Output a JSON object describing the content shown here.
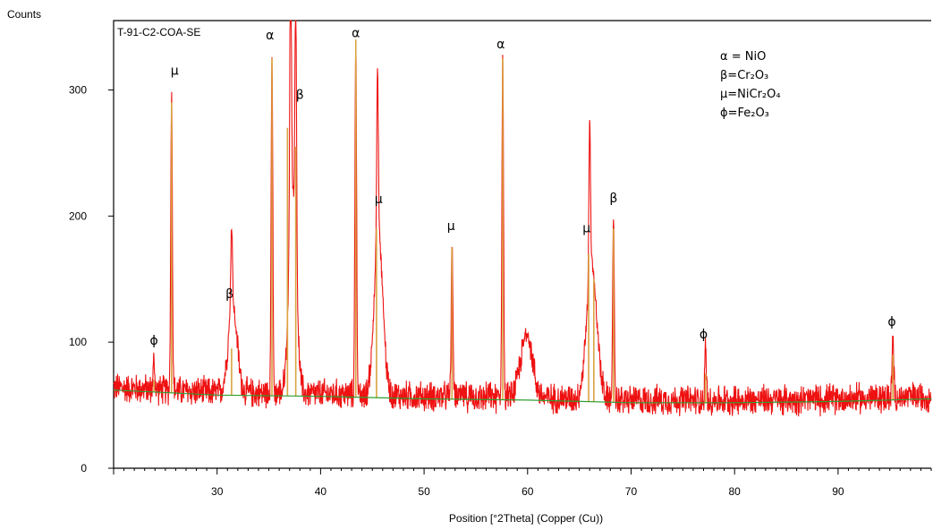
{
  "chart_data": {
    "type": "line",
    "sample_name": "T-91-C2-COA-SE",
    "ylabel": "Counts",
    "xlabel": "Position [°2Theta] (Copper (Cu))",
    "xlim": [
      20,
      99
    ],
    "ylim": [
      0,
      355
    ],
    "x_ticks": [
      "30",
      "40",
      "50",
      "60",
      "70",
      "80",
      "90"
    ],
    "x_tick_values": [
      30,
      40,
      50,
      60,
      70,
      80,
      90
    ],
    "y_ticks": [
      "0",
      "100",
      "200",
      "300"
    ],
    "y_tick_values": [
      0,
      100,
      200,
      300
    ],
    "colors": {
      "observed": "#ee1111",
      "reference": "#d9a441",
      "background": "#2f9e2f",
      "frame": "#000000"
    },
    "background_line": {
      "x": [
        20,
        30,
        40,
        50,
        60,
        70,
        80,
        90,
        99
      ],
      "y": [
        62,
        58,
        57,
        55,
        54,
        52,
        52,
        53,
        55
      ]
    },
    "noise_amplitude": 10,
    "humps": [
      {
        "center": 31.5,
        "height": 70,
        "width": 0.6
      },
      {
        "center": 37.3,
        "height": 160,
        "width": 0.5
      },
      {
        "center": 45.6,
        "height": 125,
        "width": 0.6
      },
      {
        "center": 59.9,
        "height": 50,
        "width": 0.8
      },
      {
        "center": 66.2,
        "height": 105,
        "width": 0.7
      }
    ],
    "peaks": [
      {
        "x": 23.9,
        "y": 85,
        "phase": "ϕ"
      },
      {
        "x": 25.6,
        "y": 298,
        "phase": "μ"
      },
      {
        "x": 31.4,
        "y": 127,
        "phase": "β"
      },
      {
        "x": 35.3,
        "y": 331,
        "phase": "α"
      },
      {
        "x": 37.1,
        "y": 286,
        "phase": "β"
      },
      {
        "x": 37.6,
        "y": 264,
        "phase": ""
      },
      {
        "x": 43.4,
        "y": 341,
        "phase": "α"
      },
      {
        "x": 45.5,
        "y": 196,
        "phase": "μ"
      },
      {
        "x": 52.7,
        "y": 178,
        "phase": "μ"
      },
      {
        "x": 57.6,
        "y": 327,
        "phase": "α"
      },
      {
        "x": 66.0,
        "y": 176,
        "phase": "μ"
      },
      {
        "x": 68.3,
        "y": 197,
        "phase": "β"
      },
      {
        "x": 77.2,
        "y": 95,
        "phase": "ϕ"
      },
      {
        "x": 95.3,
        "y": 105,
        "phase": "ϕ"
      }
    ],
    "reference_lines": [
      {
        "x": 23.9,
        "y": 70
      },
      {
        "x": 25.6,
        "y": 290
      },
      {
        "x": 31.4,
        "y": 95
      },
      {
        "x": 35.3,
        "y": 325
      },
      {
        "x": 36.8,
        "y": 270
      },
      {
        "x": 37.6,
        "y": 255
      },
      {
        "x": 43.4,
        "y": 340
      },
      {
        "x": 45.4,
        "y": 190
      },
      {
        "x": 52.7,
        "y": 175
      },
      {
        "x": 57.6,
        "y": 325
      },
      {
        "x": 65.9,
        "y": 170
      },
      {
        "x": 66.4,
        "y": 150
      },
      {
        "x": 68.3,
        "y": 190
      },
      {
        "x": 77.2,
        "y": 75
      },
      {
        "x": 95.3,
        "y": 90
      }
    ],
    "annotations": [
      {
        "label": "ϕ",
        "x": 23.9,
        "y": 98
      },
      {
        "label": "μ",
        "x": 25.9,
        "y": 312
      },
      {
        "label": "β",
        "x": 31.2,
        "y": 135
      },
      {
        "label": "α",
        "x": 35.1,
        "y": 340
      },
      {
        "label": "β",
        "x": 38.0,
        "y": 293
      },
      {
        "label": "α",
        "x": 43.4,
        "y": 342
      },
      {
        "label": "μ",
        "x": 45.6,
        "y": 210
      },
      {
        "label": "μ",
        "x": 52.6,
        "y": 189
      },
      {
        "label": "α",
        "x": 57.4,
        "y": 333
      },
      {
        "label": "μ",
        "x": 65.7,
        "y": 187
      },
      {
        "label": "β",
        "x": 68.3,
        "y": 211
      },
      {
        "label": "ϕ",
        "x": 77.0,
        "y": 103
      },
      {
        "label": "ϕ",
        "x": 95.2,
        "y": 113
      }
    ],
    "legend": {
      "placement": "top-right",
      "entries": [
        "α = NiO",
        "β=Cr₂O₃",
        "μ=NiCr₂O₄",
        "ϕ=Fe₂O₃"
      ]
    }
  }
}
